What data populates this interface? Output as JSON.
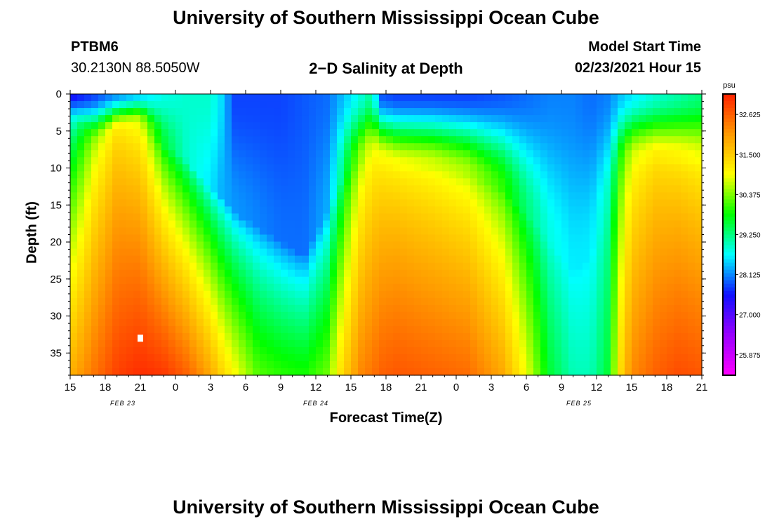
{
  "header": {
    "title_top": "University of Southern Mississippi Ocean Cube",
    "title_bottom": "University of Southern Mississippi Ocean Cube",
    "station": "PTBM6",
    "location": "30.2130N 88.5050W",
    "subtitle": "2−D Salinity at Depth",
    "model_start_label": "Model Start Time",
    "model_start_value": "02/23/2021 Hour 15"
  },
  "chart_data": {
    "type": "heatmap",
    "title": "2−D Salinity at Depth",
    "xlabel": "Forecast Time(Z)",
    "ylabel": "Depth (ft)",
    "x_range_hours": [
      0,
      54
    ],
    "y_range": [
      0,
      38
    ],
    "x_ticks": [
      {
        "h": 0,
        "label": "15"
      },
      {
        "h": 3,
        "label": "18"
      },
      {
        "h": 6,
        "label": "21"
      },
      {
        "h": 9,
        "label": "0"
      },
      {
        "h": 12,
        "label": "3"
      },
      {
        "h": 15,
        "label": "6"
      },
      {
        "h": 18,
        "label": "9"
      },
      {
        "h": 21,
        "label": "12"
      },
      {
        "h": 24,
        "label": "15"
      },
      {
        "h": 27,
        "label": "18"
      },
      {
        "h": 30,
        "label": "21"
      },
      {
        "h": 33,
        "label": "0"
      },
      {
        "h": 36,
        "label": "3"
      },
      {
        "h": 39,
        "label": "6"
      },
      {
        "h": 42,
        "label": "9"
      },
      {
        "h": 45,
        "label": "12"
      },
      {
        "h": 48,
        "label": "15"
      },
      {
        "h": 51,
        "label": "18"
      },
      {
        "h": 54,
        "label": "21"
      }
    ],
    "date_labels": [
      {
        "h": 4.5,
        "label": "FEB 23"
      },
      {
        "h": 21,
        "label": "FEB 24"
      },
      {
        "h": 43.5,
        "label": "FEB 25"
      }
    ],
    "y_ticks": [
      0,
      5,
      10,
      15,
      20,
      25,
      30,
      35
    ],
    "colorbar": {
      "unit": "psu",
      "min": 25.3,
      "max": 33.2,
      "tick_values": [
        32.625,
        31.5,
        30.375,
        29.25,
        28.125,
        27.0,
        25.875
      ],
      "tick_labels": [
        "32.625",
        "31.500",
        "30.375",
        "29.250",
        "28.125",
        "27.000",
        "25.875"
      ]
    },
    "salinity_profiles": [
      {
        "h": 0,
        "surface": 27.5,
        "top": 28.8,
        "top_depth": 4,
        "bottom": 31.8
      },
      {
        "h": 2,
        "surface": 27.8,
        "top": 30.5,
        "top_depth": 7,
        "bottom": 32.4
      },
      {
        "h": 4,
        "surface": 28.2,
        "top": 31.2,
        "top_depth": 5,
        "bottom": 32.9
      },
      {
        "h": 6,
        "surface": 28.5,
        "top": 30.8,
        "top_depth": 4,
        "bottom": 33.1
      },
      {
        "h": 8,
        "surface": 28.8,
        "top": 29.6,
        "top_depth": 7,
        "bottom": 33.0
      },
      {
        "h": 10,
        "surface": 28.9,
        "top": 28.9,
        "top_depth": 9,
        "bottom": 32.6
      },
      {
        "h": 12,
        "surface": 28.9,
        "top": 28.6,
        "top_depth": 13,
        "bottom": 31.9
      },
      {
        "h": 13,
        "surface": 28.5,
        "top": 28.3,
        "top_depth": 14,
        "bottom": 31.4
      },
      {
        "h": 14,
        "surface": 27.8,
        "top": 28.2,
        "top_depth": 16,
        "bottom": 31.0
      },
      {
        "h": 16,
        "surface": 27.8,
        "top": 28.1,
        "top_depth": 18,
        "bottom": 30.2
      },
      {
        "h": 18,
        "surface": 27.8,
        "top": 28.0,
        "top_depth": 20,
        "bottom": 30.0
      },
      {
        "h": 20,
        "surface": 27.9,
        "top": 28.0,
        "top_depth": 22,
        "bottom": 29.9
      },
      {
        "h": 22,
        "surface": 28.0,
        "top": 28.3,
        "top_depth": 16,
        "bottom": 30.3
      },
      {
        "h": 23,
        "surface": 28.3,
        "top": 29.0,
        "top_depth": 12,
        "bottom": 31.2
      },
      {
        "h": 24,
        "surface": 28.6,
        "top": 29.9,
        "top_depth": 10,
        "bottom": 31.8
      },
      {
        "h": 25,
        "surface": 28.9,
        "top": 30.6,
        "top_depth": 9,
        "bottom": 32.3
      },
      {
        "h": 25.8,
        "surface": 29.2,
        "top": 30.9,
        "top_depth": 8,
        "bottom": 32.4
      },
      {
        "h": 26.5,
        "surface": 27.9,
        "top": 31.0,
        "top_depth": 9,
        "bottom": 32.6
      },
      {
        "h": 28,
        "surface": 27.8,
        "top": 31.0,
        "top_depth": 10,
        "bottom": 32.7
      },
      {
        "h": 31,
        "surface": 27.8,
        "top": 30.8,
        "top_depth": 10,
        "bottom": 32.6
      },
      {
        "h": 34,
        "surface": 27.8,
        "top": 30.6,
        "top_depth": 11,
        "bottom": 32.5
      },
      {
        "h": 37,
        "surface": 27.9,
        "top": 30.0,
        "top_depth": 13,
        "bottom": 31.9
      },
      {
        "h": 39,
        "surface": 28.0,
        "top": 29.3,
        "top_depth": 16,
        "bottom": 30.9
      },
      {
        "h": 41,
        "surface": 28.1,
        "top": 28.8,
        "top_depth": 20,
        "bottom": 29.6
      },
      {
        "h": 43,
        "surface": 28.1,
        "top": 28.6,
        "top_depth": 24,
        "bottom": 29.0
      },
      {
        "h": 44.5,
        "surface": 28.0,
        "top": 28.6,
        "top_depth": 22,
        "bottom": 29.0
      },
      {
        "h": 46,
        "surface": 28.1,
        "top": 29.0,
        "top_depth": 15,
        "bottom": 29.6
      },
      {
        "h": 47,
        "surface": 28.4,
        "top": 30.0,
        "top_depth": 10,
        "bottom": 31.3
      },
      {
        "h": 48,
        "surface": 28.6,
        "top": 30.8,
        "top_depth": 9,
        "bottom": 32.2
      },
      {
        "h": 50,
        "surface": 28.9,
        "top": 31.2,
        "top_depth": 9,
        "bottom": 32.6
      },
      {
        "h": 52,
        "surface": 29.1,
        "top": 31.1,
        "top_depth": 9,
        "bottom": 32.8
      },
      {
        "h": 54,
        "surface": 29.3,
        "top": 30.9,
        "top_depth": 9,
        "bottom": 32.7
      }
    ],
    "colors": {
      "stops": [
        "#ff00ff",
        "#9900ff",
        "#1010ff",
        "#00ffff",
        "#00ff00",
        "#ffff00",
        "#ff9900",
        "#ff2200"
      ],
      "frame": "#000000"
    }
  }
}
